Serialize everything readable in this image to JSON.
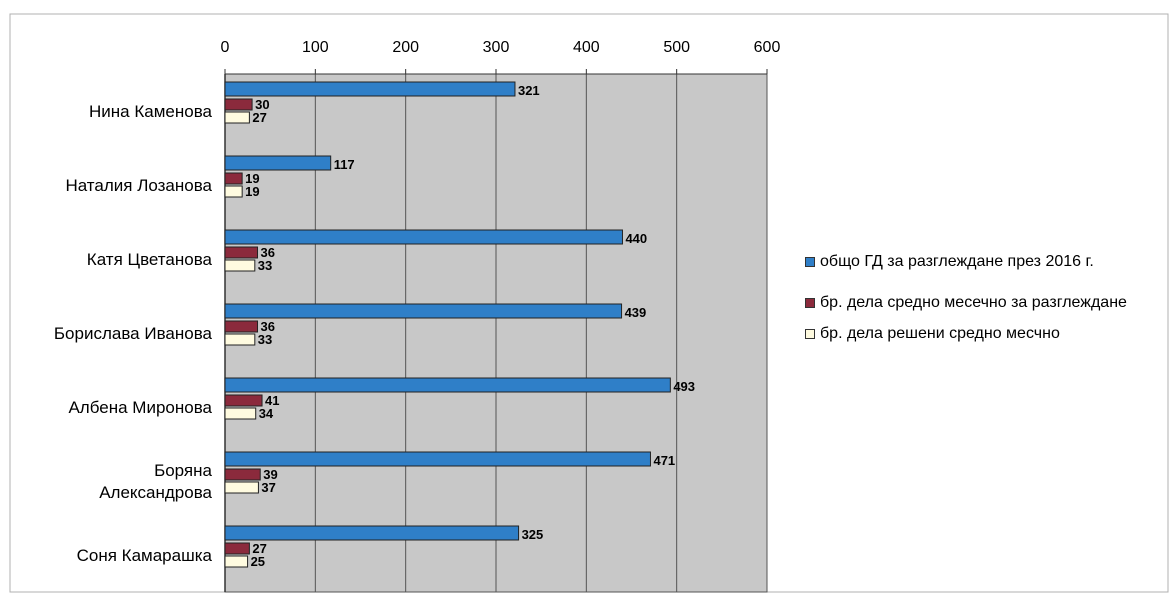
{
  "chart_data": {
    "type": "bar",
    "orientation": "horizontal",
    "title": "",
    "xlabel": "",
    "ylabel": "",
    "xlim": [
      0,
      600
    ],
    "x_ticks": [
      "0",
      "100",
      "200",
      "300",
      "400",
      "500",
      "600"
    ],
    "x_axis_position": "top",
    "grid": true,
    "legend_position": "right",
    "categories": [
      [
        "Нина Каменова"
      ],
      [
        "Наталия Лозанова"
      ],
      [
        "Катя Цветанова"
      ],
      [
        "Борислава Иванова"
      ],
      [
        "Албена Миронова"
      ],
      [
        "Боряна",
        "Александрова"
      ],
      [
        "Соня Камарашка"
      ]
    ],
    "series": [
      {
        "name": "общо ГД за разглеждане през 2016 г.",
        "color": "#2f7fc8",
        "values": [
          321,
          117,
          440,
          439,
          493,
          471,
          325
        ]
      },
      {
        "name": "бр. дела средно месечно за разглеждане",
        "color": "#8b2a3c",
        "values": [
          30,
          19,
          36,
          36,
          41,
          39,
          27
        ]
      },
      {
        "name": "бр. дела решени средно месчно",
        "color": "#fffbe0",
        "values": [
          27,
          19,
          33,
          33,
          34,
          37,
          25
        ]
      }
    ]
  },
  "legend": {
    "items": [
      {
        "label": "общо ГД за разглеждане през 2016 г.",
        "color": "#2f7fc8"
      },
      {
        "label": "бр. дела средно месечно за разглеждане",
        "color": "#8b2a3c"
      },
      {
        "label": "бр. дела решени средно месчно",
        "color": "#fffbe0"
      }
    ]
  }
}
